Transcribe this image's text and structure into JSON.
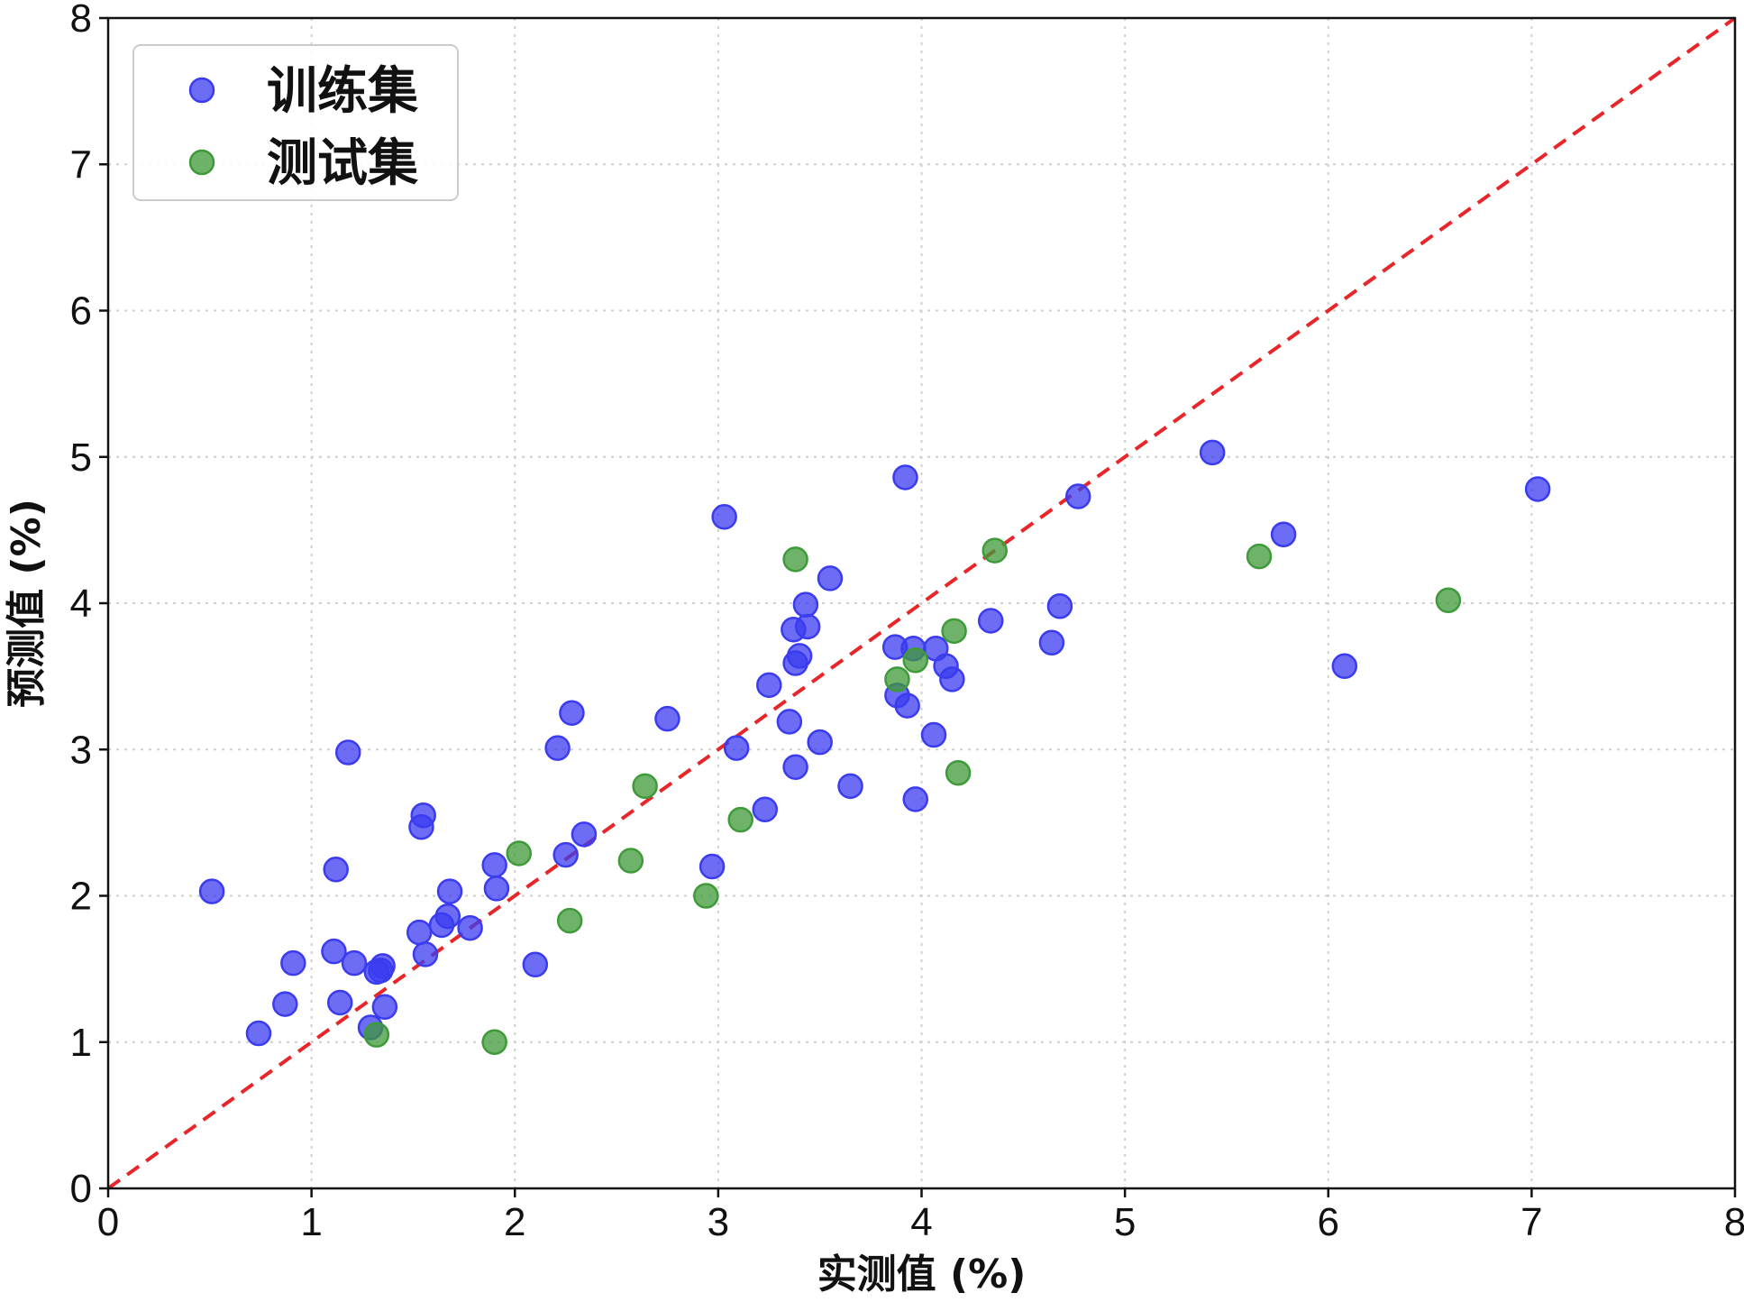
{
  "chart_data": {
    "type": "scatter",
    "xlabel": "实测值 (%)",
    "ylabel": "预测值 (%)",
    "xlim": [
      0,
      8
    ],
    "ylim": [
      0,
      8
    ],
    "xticks": [
      "0",
      "1",
      "2",
      "3",
      "4",
      "5",
      "6",
      "7",
      "8"
    ],
    "yticks": [
      "0",
      "1",
      "2",
      "3",
      "4",
      "5",
      "6",
      "7",
      "8"
    ],
    "grid": true,
    "legend_position": "top-left",
    "reference_line": {
      "from": [
        0,
        0
      ],
      "to": [
        8,
        8
      ],
      "color": "#e8262a",
      "style": "dashed"
    },
    "series": [
      {
        "name": "训练集",
        "color": "#3b3bf0",
        "points": [
          [
            0.51,
            2.03
          ],
          [
            0.74,
            1.06
          ],
          [
            0.87,
            1.26
          ],
          [
            0.91,
            1.54
          ],
          [
            1.11,
            1.62
          ],
          [
            1.12,
            2.18
          ],
          [
            1.14,
            1.27
          ],
          [
            1.18,
            2.98
          ],
          [
            1.21,
            1.54
          ],
          [
            1.29,
            1.1
          ],
          [
            1.32,
            1.48
          ],
          [
            1.34,
            1.49
          ],
          [
            1.35,
            1.52
          ],
          [
            1.36,
            1.24
          ],
          [
            1.53,
            1.75
          ],
          [
            1.54,
            2.47
          ],
          [
            1.55,
            2.55
          ],
          [
            1.56,
            1.6
          ],
          [
            1.64,
            1.8
          ],
          [
            1.67,
            1.86
          ],
          [
            1.68,
            2.03
          ],
          [
            1.78,
            1.78
          ],
          [
            1.9,
            2.21
          ],
          [
            1.91,
            2.05
          ],
          [
            2.1,
            1.53
          ],
          [
            2.21,
            3.01
          ],
          [
            2.25,
            2.28
          ],
          [
            2.28,
            3.25
          ],
          [
            2.34,
            2.42
          ],
          [
            2.75,
            3.21
          ],
          [
            2.97,
            2.2
          ],
          [
            3.03,
            4.59
          ],
          [
            3.09,
            3.01
          ],
          [
            3.23,
            2.59
          ],
          [
            3.25,
            3.44
          ],
          [
            3.35,
            3.19
          ],
          [
            3.37,
            3.82
          ],
          [
            3.38,
            2.88
          ],
          [
            3.38,
            3.59
          ],
          [
            3.4,
            3.64
          ],
          [
            3.43,
            3.99
          ],
          [
            3.44,
            3.84
          ],
          [
            3.5,
            3.05
          ],
          [
            3.55,
            4.17
          ],
          [
            3.65,
            2.75
          ],
          [
            3.87,
            3.7
          ],
          [
            3.88,
            3.37
          ],
          [
            3.92,
            4.86
          ],
          [
            3.93,
            3.3
          ],
          [
            3.96,
            3.69
          ],
          [
            3.97,
            2.66
          ],
          [
            4.06,
            3.1
          ],
          [
            4.07,
            3.69
          ],
          [
            4.12,
            3.57
          ],
          [
            4.15,
            3.48
          ],
          [
            4.34,
            3.88
          ],
          [
            4.64,
            3.73
          ],
          [
            4.68,
            3.98
          ],
          [
            4.77,
            4.73
          ],
          [
            5.43,
            5.03
          ],
          [
            5.78,
            4.47
          ],
          [
            6.08,
            3.57
          ],
          [
            7.03,
            4.78
          ]
        ]
      },
      {
        "name": "测试集",
        "color": "#3f9a3a",
        "points": [
          [
            1.32,
            1.05
          ],
          [
            1.9,
            1.0
          ],
          [
            2.02,
            2.29
          ],
          [
            2.27,
            1.83
          ],
          [
            2.57,
            2.24
          ],
          [
            2.64,
            2.75
          ],
          [
            2.94,
            2.0
          ],
          [
            3.11,
            2.52
          ],
          [
            3.38,
            4.3
          ],
          [
            3.88,
            3.48
          ],
          [
            3.97,
            3.61
          ],
          [
            4.16,
            3.81
          ],
          [
            4.18,
            2.84
          ],
          [
            4.36,
            4.36
          ],
          [
            5.66,
            4.32
          ],
          [
            6.59,
            4.02
          ]
        ]
      }
    ]
  }
}
